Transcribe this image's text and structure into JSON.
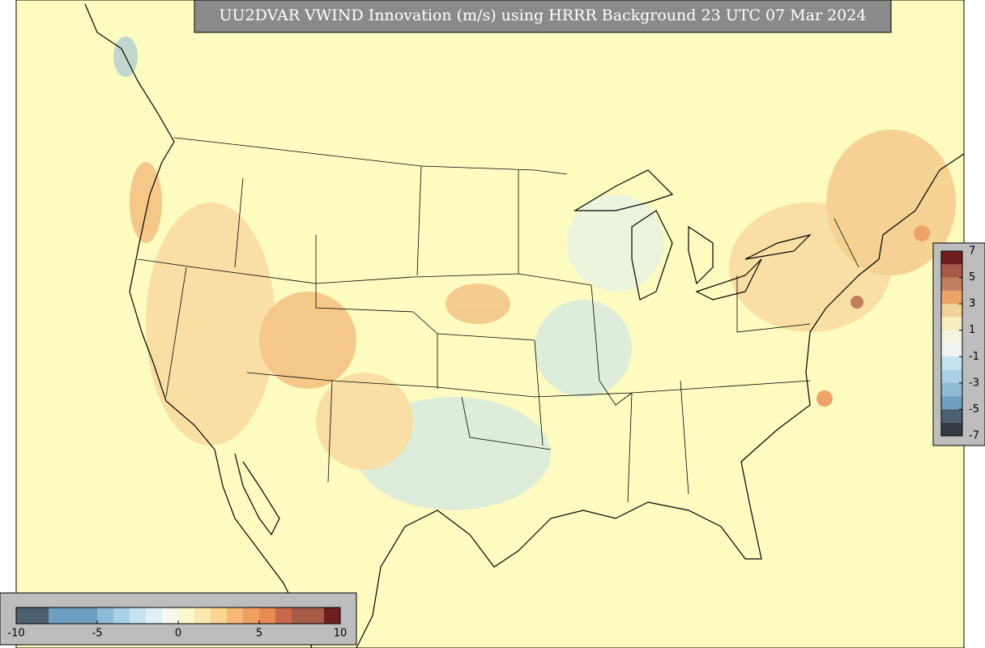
{
  "title": "UU2DVAR VWIND Innovation (m/s) using HRRR Background 23 UTC 07 Mar 2024",
  "colorbars": [
    {
      "orientation": "vertical",
      "lim": [
        -7,
        7
      ],
      "ticks": [
        7,
        5,
        3,
        1,
        -1,
        -3,
        -5,
        -7
      ],
      "colors": [
        "#333c44",
        "#4d6070",
        "#6e9fc0",
        "#8fbad6",
        "#a9d0e6",
        "#c5e2ef",
        "#eef4f2",
        "#f6f3e0",
        "#fbeec0",
        "#f3d29a",
        "#eea468",
        "#c0805e",
        "#a85a48",
        "#6e1e1e"
      ]
    },
    {
      "orientation": "horizontal",
      "lim": [
        -10,
        10
      ],
      "ticks": [
        -10,
        -5,
        0,
        5,
        10
      ],
      "colors": [
        "#4d6070",
        "#4d6070",
        "#6e9fc0",
        "#6e9fc0",
        "#6e9fc0",
        "#8fbad6",
        "#a9d0e6",
        "#c5e2ef",
        "#deeff5",
        "#f4f8f0",
        "#fdf7d0",
        "#fde8b0",
        "#fbd592",
        "#f7b877",
        "#f0a060",
        "#e88a52",
        "#c86848",
        "#a85a48",
        "#a85a48",
        "#6e1e1e"
      ]
    }
  ]
}
